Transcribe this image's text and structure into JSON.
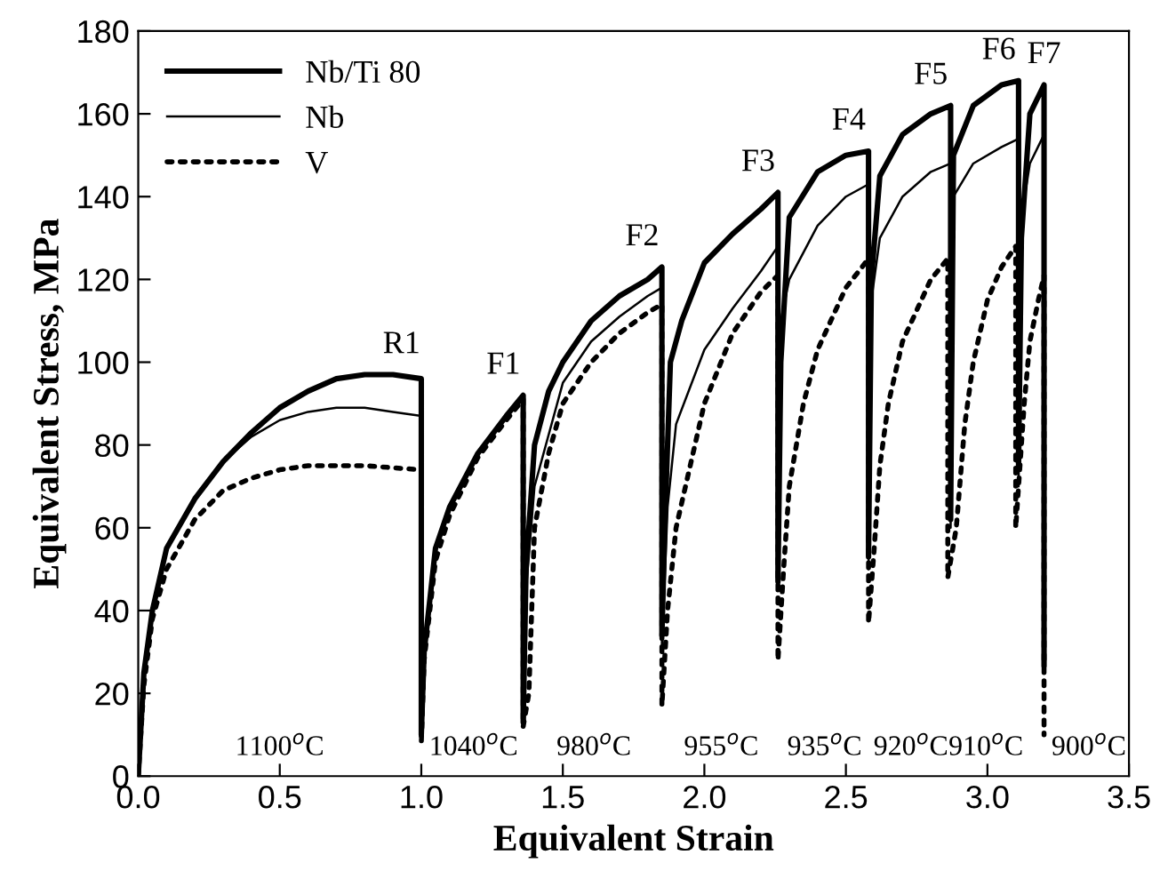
{
  "chart_data": {
    "type": "line",
    "xlabel": "Equivalent Strain",
    "ylabel": "Equivalent Stress, MPa",
    "xlim": [
      0,
      3.5
    ],
    "xticks": [
      {
        "value": 0,
        "label": "0.0"
      },
      0.5,
      {
        "value": 1,
        "label": "1.0"
      },
      1.5,
      {
        "value": 2,
        "label": "2.0"
      },
      2.5,
      {
        "value": 3,
        "label": "3.0"
      },
      3.5
    ],
    "ylim": [
      0,
      180
    ],
    "yticks": [
      0,
      20,
      40,
      60,
      80,
      100,
      120,
      140,
      160,
      180
    ],
    "grid": false,
    "legend": "top left",
    "marker": "none",
    "series": [
      {
        "name": "Nb/Ti 80",
        "color": "#000000",
        "line_style": "solid",
        "x": [
          0,
          0.02,
          0.05,
          0.1,
          0.2,
          0.3,
          0.4,
          0.5,
          0.6,
          0.7,
          0.8,
          0.9,
          1.0,
          1.0,
          1.01,
          1.05,
          1.1,
          1.2,
          1.3,
          1.36,
          1.36,
          1.37,
          1.4,
          1.45,
          1.5,
          1.6,
          1.7,
          1.8,
          1.85,
          1.85,
          1.86,
          1.88,
          1.92,
          2.0,
          2.1,
          2.2,
          2.26,
          2.26,
          2.27,
          2.3,
          2.4,
          2.5,
          2.58,
          2.58,
          2.59,
          2.62,
          2.7,
          2.8,
          2.87,
          2.87,
          2.88,
          2.95,
          3.05,
          3.11,
          3.11,
          3.12,
          3.15,
          3.2,
          3.2
        ],
        "values": [
          0,
          25,
          40,
          55,
          67,
          76,
          83,
          89,
          93,
          96,
          97,
          97,
          96,
          10,
          30,
          55,
          65,
          78,
          87,
          92,
          13,
          50,
          80,
          93,
          100,
          110,
          116,
          120,
          123,
          34,
          60,
          100,
          110,
          124,
          131,
          137,
          141,
          47,
          100,
          135,
          146,
          150,
          151,
          53,
          120,
          145,
          155,
          160,
          162,
          62,
          150,
          162,
          167,
          168,
          75,
          130,
          160,
          167,
          27
        ]
      },
      {
        "name": "Nb",
        "color": "#000000",
        "line_style": "solid",
        "x": [
          0,
          0.02,
          0.05,
          0.1,
          0.2,
          0.3,
          0.4,
          0.5,
          0.6,
          0.7,
          0.8,
          0.9,
          1.0,
          1.0,
          1.01,
          1.05,
          1.1,
          1.2,
          1.3,
          1.36,
          1.36,
          1.37,
          1.4,
          1.5,
          1.6,
          1.7,
          1.8,
          1.85,
          1.85,
          1.87,
          1.9,
          2.0,
          2.1,
          2.2,
          2.26,
          2.26,
          2.27,
          2.3,
          2.4,
          2.5,
          2.58,
          2.58,
          2.59,
          2.62,
          2.7,
          2.8,
          2.87,
          2.87,
          2.88,
          2.95,
          3.05,
          3.11,
          3.11,
          3.12,
          3.15,
          3.2,
          3.2
        ],
        "values": [
          0,
          25,
          40,
          55,
          67,
          76,
          82,
          86,
          88,
          89,
          89,
          88,
          87,
          10,
          30,
          55,
          65,
          78,
          87,
          91,
          13,
          45,
          70,
          95,
          105,
          111,
          116,
          118,
          30,
          65,
          85,
          103,
          113,
          122,
          128,
          45,
          110,
          120,
          133,
          140,
          143,
          50,
          115,
          130,
          140,
          146,
          148,
          60,
          140,
          148,
          152,
          154,
          70,
          135,
          148,
          155,
          27
        ]
      },
      {
        "name": "V",
        "color": "#000000",
        "line_style": "dotted",
        "x": [
          0,
          0.02,
          0.05,
          0.1,
          0.2,
          0.3,
          0.4,
          0.5,
          0.6,
          0.8,
          1.0,
          1.0,
          1.01,
          1.05,
          1.1,
          1.2,
          1.3,
          1.36,
          1.36,
          1.38,
          1.4,
          1.45,
          1.5,
          1.6,
          1.7,
          1.8,
          1.85,
          1.85,
          1.87,
          1.9,
          2.0,
          2.1,
          2.2,
          2.26,
          2.26,
          2.28,
          2.3,
          2.35,
          2.4,
          2.5,
          2.58,
          2.58,
          2.6,
          2.62,
          2.65,
          2.7,
          2.8,
          2.86,
          2.86,
          2.89,
          2.92,
          2.95,
          3.0,
          3.05,
          3.1,
          3.1,
          3.13,
          3.15,
          3.18,
          3.2,
          3.2
        ],
        "values": [
          0,
          22,
          38,
          50,
          62,
          69,
          72,
          74,
          75,
          75,
          74,
          8,
          28,
          52,
          63,
          77,
          86,
          91,
          12,
          20,
          60,
          78,
          90,
          100,
          107,
          112,
          114,
          17,
          40,
          60,
          90,
          107,
          117,
          121,
          28,
          50,
          70,
          90,
          103,
          118,
          125,
          37,
          55,
          75,
          90,
          105,
          120,
          125,
          48,
          60,
          85,
          100,
          115,
          123,
          128,
          60,
          90,
          105,
          115,
          121,
          10
        ]
      }
    ],
    "annotations": [
      "R1",
      "F1",
      "F2",
      "F3",
      "F4",
      "F5",
      "F6",
      "F7",
      "1100$^{o}$C",
      "1040$^{o}$C",
      "980$^{o}$C",
      "955$^{o}$C",
      "935$^{o}$C",
      "920$^{o}$C",
      "910$^{o}$C",
      "900$^{o}$C"
    ]
  }
}
